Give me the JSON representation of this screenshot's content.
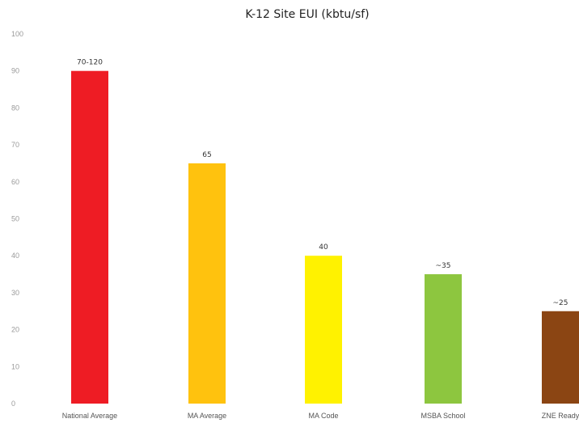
{
  "chart_data": {
    "type": "bar",
    "title": "K-12 Site EUI (kbtu/sf)",
    "xlabel": "",
    "ylabel": "",
    "ylim": [
      0,
      100
    ],
    "yticks": [
      0,
      10,
      20,
      30,
      40,
      50,
      60,
      70,
      80,
      90,
      100
    ],
    "grid": false,
    "legend": "none",
    "categories": [
      "National Average",
      "MA Average",
      "MA Code",
      "MSBA School",
      "ZNE Ready"
    ],
    "values": [
      90,
      65,
      40,
      35,
      25
    ],
    "data_labels": [
      "70-120",
      "65",
      "40",
      "~35",
      "~25"
    ],
    "colors": [
      "#ee1c24",
      "#ffc20e",
      "#fff200",
      "#8dc63f",
      "#8b4513"
    ]
  }
}
